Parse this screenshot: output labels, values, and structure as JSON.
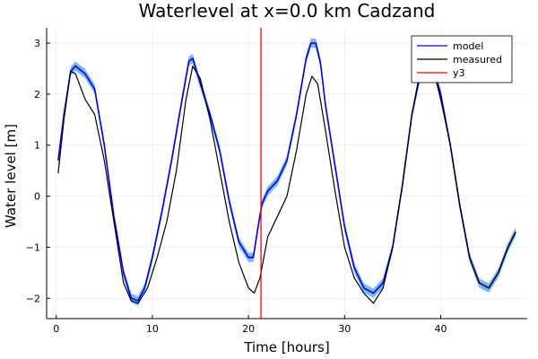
{
  "chart_data": {
    "type": "line",
    "title": "Waterlevel at x=0.0 km Cadzand",
    "xlabel": "Time [hours]",
    "ylabel": "Water level [m]",
    "xlim": [
      -1.0,
      49.0
    ],
    "ylim": [
      -2.4,
      3.3
    ],
    "xticks": [
      0,
      10,
      20,
      30,
      40
    ],
    "yticks": [
      -2,
      -1,
      0,
      1,
      2,
      3
    ],
    "xtick_labels": [
      "0",
      "10",
      "20",
      "30",
      "40"
    ],
    "ytick_labels": [
      "−2",
      "−1",
      "0",
      "1",
      "2",
      "3"
    ],
    "grid": true,
    "legend_position": "top-right",
    "series": [
      {
        "name": "model",
        "color": "#0000ff",
        "band_color": "#5aaff0",
        "band_halfwidth": 0.09,
        "points": [
          [
            0.2,
            0.7
          ],
          [
            0.8,
            1.6
          ],
          [
            1.5,
            2.45
          ],
          [
            2.0,
            2.55
          ],
          [
            3.0,
            2.4
          ],
          [
            4.0,
            2.1
          ],
          [
            5.0,
            1.0
          ],
          [
            6.0,
            -0.4
          ],
          [
            7.0,
            -1.5
          ],
          [
            7.8,
            -2.0
          ],
          [
            8.5,
            -2.05
          ],
          [
            9.2,
            -1.8
          ],
          [
            10.0,
            -1.2
          ],
          [
            11.0,
            -0.3
          ],
          [
            12.0,
            0.7
          ],
          [
            13.0,
            1.8
          ],
          [
            13.8,
            2.65
          ],
          [
            14.2,
            2.7
          ],
          [
            15.0,
            2.2
          ],
          [
            16.0,
            1.6
          ],
          [
            17.0,
            0.9
          ],
          [
            18.0,
            -0.1
          ],
          [
            19.0,
            -0.9
          ],
          [
            20.0,
            -1.2
          ],
          [
            20.5,
            -1.2
          ],
          [
            21.0,
            -0.6
          ],
          [
            21.4,
            -0.15
          ],
          [
            22.0,
            0.1
          ],
          [
            23.0,
            0.3
          ],
          [
            24.0,
            0.7
          ],
          [
            25.0,
            1.6
          ],
          [
            26.0,
            2.7
          ],
          [
            26.5,
            3.0
          ],
          [
            27.0,
            3.0
          ],
          [
            27.5,
            2.6
          ],
          [
            28.0,
            1.8
          ],
          [
            29.0,
            0.6
          ],
          [
            30.0,
            -0.6
          ],
          [
            31.0,
            -1.4
          ],
          [
            32.0,
            -1.8
          ],
          [
            33.0,
            -1.9
          ],
          [
            34.0,
            -1.7
          ],
          [
            35.0,
            -1.0
          ],
          [
            36.0,
            0.2
          ],
          [
            37.0,
            1.6
          ],
          [
            38.0,
            2.5
          ],
          [
            38.6,
            2.7
          ],
          [
            39.0,
            2.65
          ],
          [
            40.0,
            2.0
          ],
          [
            41.0,
            1.0
          ],
          [
            42.0,
            -0.2
          ],
          [
            43.0,
            -1.2
          ],
          [
            44.0,
            -1.7
          ],
          [
            45.0,
            -1.8
          ],
          [
            46.0,
            -1.5
          ],
          [
            47.0,
            -1.0
          ],
          [
            47.8,
            -0.7
          ]
        ]
      },
      {
        "name": "measured",
        "color": "#000000",
        "points": [
          [
            0.2,
            0.45
          ],
          [
            0.8,
            1.5
          ],
          [
            1.5,
            2.45
          ],
          [
            2.0,
            2.4
          ],
          [
            3.0,
            1.9
          ],
          [
            4.0,
            1.6
          ],
          [
            5.0,
            0.7
          ],
          [
            6.0,
            -0.5
          ],
          [
            7.0,
            -1.7
          ],
          [
            7.8,
            -2.05
          ],
          [
            8.5,
            -2.1
          ],
          [
            9.5,
            -1.8
          ],
          [
            10.5,
            -1.2
          ],
          [
            11.5,
            -0.5
          ],
          [
            12.5,
            0.5
          ],
          [
            13.5,
            1.9
          ],
          [
            14.2,
            2.55
          ],
          [
            15.0,
            2.3
          ],
          [
            16.0,
            1.5
          ],
          [
            17.0,
            0.5
          ],
          [
            18.0,
            -0.5
          ],
          [
            19.0,
            -1.3
          ],
          [
            20.0,
            -1.8
          ],
          [
            20.6,
            -1.9
          ],
          [
            21.2,
            -1.6
          ],
          [
            22.0,
            -0.8
          ],
          [
            23.0,
            -0.4
          ],
          [
            24.0,
            0.0
          ],
          [
            25.0,
            0.9
          ],
          [
            26.0,
            2.0
          ],
          [
            26.6,
            2.35
          ],
          [
            27.2,
            2.2
          ],
          [
            28.0,
            1.3
          ],
          [
            29.0,
            0.1
          ],
          [
            30.0,
            -1.0
          ],
          [
            31.0,
            -1.6
          ],
          [
            32.0,
            -1.9
          ],
          [
            33.0,
            -2.1
          ],
          [
            34.0,
            -1.8
          ],
          [
            35.0,
            -1.0
          ],
          [
            36.0,
            0.2
          ],
          [
            37.0,
            1.6
          ],
          [
            38.0,
            2.6
          ],
          [
            38.6,
            2.7
          ],
          [
            39.2,
            2.5
          ],
          [
            40.0,
            1.9
          ],
          [
            41.0,
            1.0
          ],
          [
            42.0,
            -0.2
          ],
          [
            43.0,
            -1.2
          ],
          [
            44.0,
            -1.7
          ],
          [
            45.0,
            -1.8
          ],
          [
            46.0,
            -1.5
          ],
          [
            47.0,
            -1.0
          ],
          [
            47.8,
            -0.7
          ]
        ]
      },
      {
        "name": "y3",
        "color": "#ff0000",
        "vline_x": 21.3
      }
    ]
  }
}
